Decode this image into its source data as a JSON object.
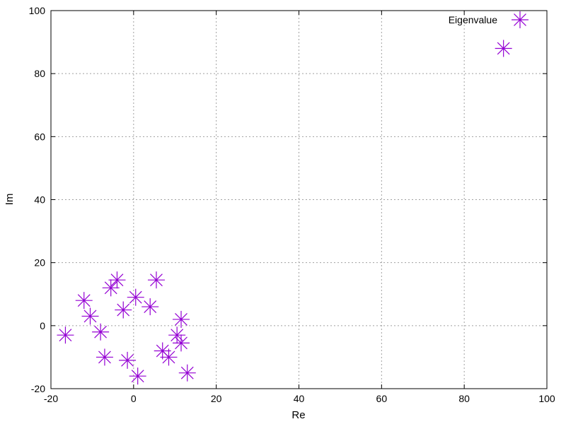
{
  "chart_data": {
    "type": "scatter",
    "title": "",
    "xlabel": "Re",
    "ylabel": "Im",
    "xlim": [
      -20,
      100
    ],
    "ylim": [
      -20,
      100
    ],
    "xticks": [
      -20,
      0,
      20,
      40,
      60,
      80,
      100
    ],
    "yticks": [
      -20,
      0,
      20,
      40,
      60,
      80,
      100
    ],
    "grid": true,
    "legend_position": "top-right",
    "series": [
      {
        "name": "Eigenvalue",
        "color": "#9400d3",
        "marker": "asterisk",
        "points": [
          {
            "x": -16.5,
            "y": -3
          },
          {
            "x": -12,
            "y": 8
          },
          {
            "x": -10.5,
            "y": 3
          },
          {
            "x": -8,
            "y": -2
          },
          {
            "x": -7,
            "y": -10
          },
          {
            "x": -5.5,
            "y": 12
          },
          {
            "x": -4,
            "y": 14.5
          },
          {
            "x": -2.5,
            "y": 5
          },
          {
            "x": -1.5,
            "y": -11
          },
          {
            "x": 0.5,
            "y": 9
          },
          {
            "x": 1,
            "y": -16
          },
          {
            "x": 4,
            "y": 6
          },
          {
            "x": 5.5,
            "y": 14.5
          },
          {
            "x": 7,
            "y": -8
          },
          {
            "x": 8.5,
            "y": -10
          },
          {
            "x": 10.5,
            "y": -3
          },
          {
            "x": 11.5,
            "y": -5.5
          },
          {
            "x": 11.5,
            "y": 2
          },
          {
            "x": 13,
            "y": -15
          },
          {
            "x": 89.5,
            "y": 88
          }
        ]
      }
    ]
  }
}
